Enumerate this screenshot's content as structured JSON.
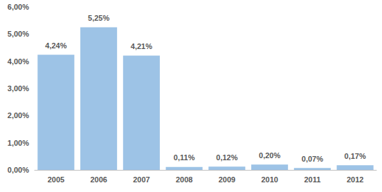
{
  "chart_data": {
    "type": "bar",
    "categories": [
      "2005",
      "2006",
      "2007",
      "2008",
      "2009",
      "2010",
      "2011",
      "2012"
    ],
    "values": [
      4.24,
      5.25,
      4.21,
      0.11,
      0.12,
      0.2,
      0.07,
      0.17
    ],
    "value_labels": [
      "4,24%",
      "5,25%",
      "4,21%",
      "0,11%",
      "0,12%",
      "0,20%",
      "0,07%",
      "0,17%"
    ],
    "color": "#9dc3e6",
    "ylim": [
      0,
      6
    ],
    "yticks": [
      {
        "value": 0,
        "label": "0,00%"
      },
      {
        "value": 1,
        "label": "1,00%"
      },
      {
        "value": 2,
        "label": "2,00%"
      },
      {
        "value": 3,
        "label": "3,00%"
      },
      {
        "value": 4,
        "label": "4,00%"
      },
      {
        "value": 5,
        "label": "5,00%"
      },
      {
        "value": 6,
        "label": "6,00%"
      }
    ],
    "grid": false,
    "data_labels": true
  }
}
